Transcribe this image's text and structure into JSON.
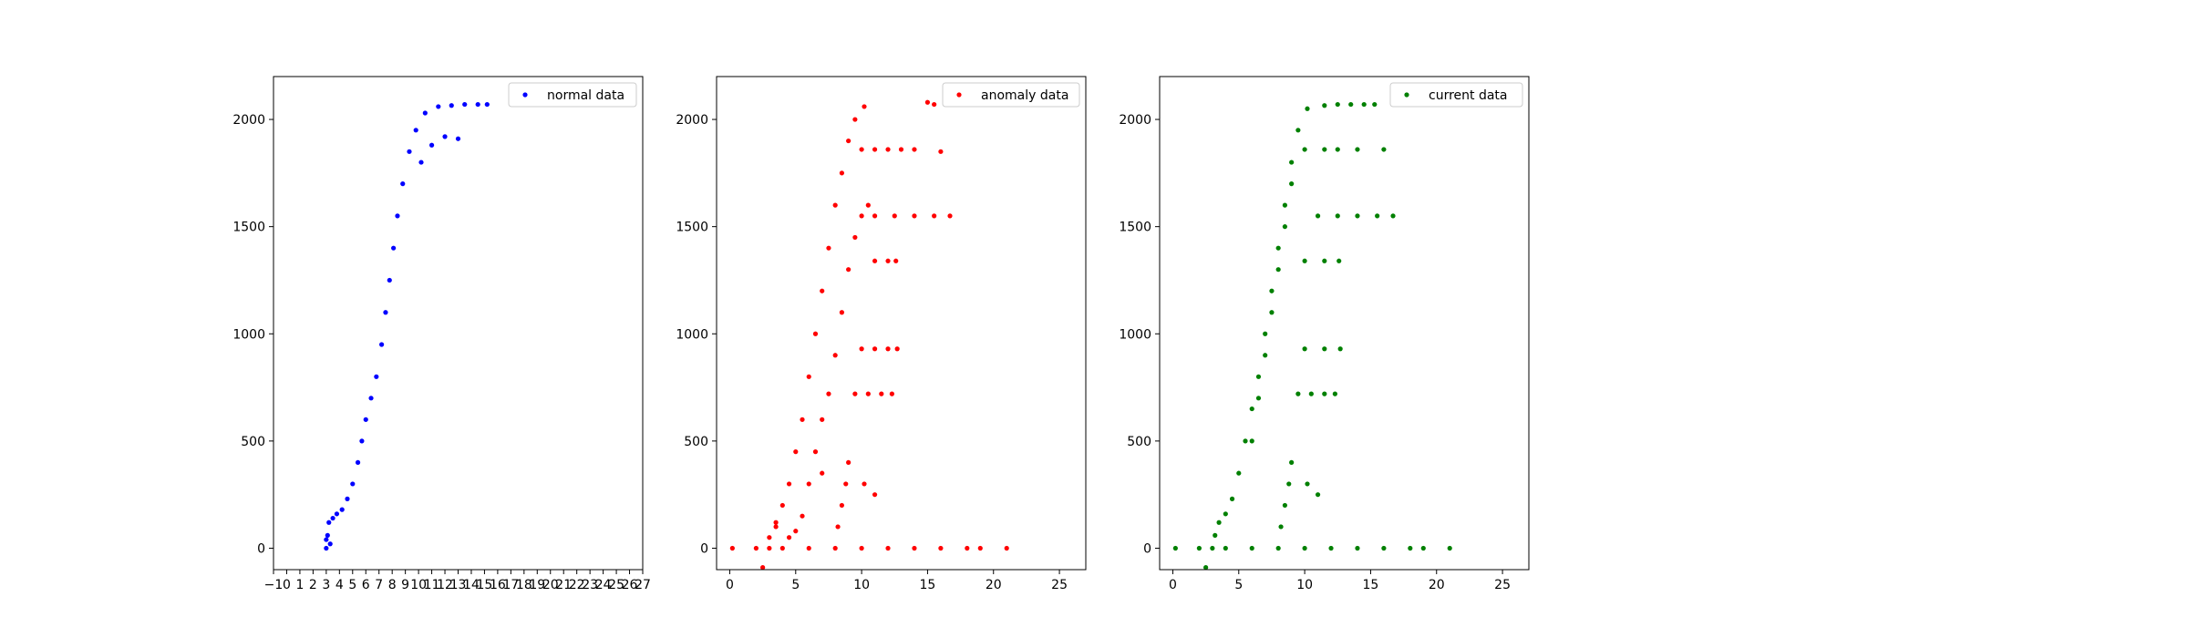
{
  "chart_data": [
    {
      "type": "scatter",
      "color": "#0000ff",
      "series": [
        {
          "name": "normal data"
        }
      ],
      "legend_loc": "upper right",
      "xlim": [
        -1,
        27
      ],
      "ylim": [
        -100,
        2200
      ],
      "xticks": [
        -1,
        0,
        1,
        2,
        3,
        4,
        5,
        6,
        7,
        8,
        9,
        10,
        11,
        12,
        13,
        14,
        15,
        16,
        17,
        18,
        19,
        20,
        21,
        22,
        23,
        24,
        25,
        26,
        27
      ],
      "xtick_labels": [
        "−1",
        "0",
        "1",
        "2",
        "3",
        "4",
        "5",
        "6",
        "7",
        "8",
        "9",
        "10",
        "11",
        "12",
        "13",
        "14",
        "15",
        "16",
        "17",
        "18",
        "19",
        "20",
        "21",
        "22",
        "23",
        "24",
        "25",
        "26",
        "27"
      ],
      "yticks": [
        0,
        500,
        1000,
        1500,
        2000
      ],
      "ytick_labels": [
        "0",
        "500",
        "1000",
        "1500",
        "2000"
      ],
      "points": [
        [
          3.0,
          0
        ],
        [
          3.1,
          60
        ],
        [
          3.2,
          120
        ],
        [
          3.5,
          140
        ],
        [
          3.8,
          160
        ],
        [
          4.2,
          180
        ],
        [
          4.6,
          230
        ],
        [
          5.0,
          300
        ],
        [
          5.4,
          400
        ],
        [
          5.7,
          500
        ],
        [
          6.0,
          600
        ],
        [
          6.4,
          700
        ],
        [
          6.8,
          800
        ],
        [
          7.2,
          950
        ],
        [
          7.5,
          1100
        ],
        [
          7.8,
          1250
        ],
        [
          8.1,
          1400
        ],
        [
          8.4,
          1550
        ],
        [
          8.8,
          1700
        ],
        [
          9.3,
          1850
        ],
        [
          9.8,
          1950
        ],
        [
          10.5,
          2030
        ],
        [
          11.5,
          2060
        ],
        [
          12.5,
          2065
        ],
        [
          13.5,
          2070
        ],
        [
          14.5,
          2070
        ],
        [
          15.2,
          2070
        ],
        [
          12.0,
          1920
        ],
        [
          13.0,
          1910
        ],
        [
          10.2,
          1800
        ],
        [
          11.0,
          1880
        ],
        [
          3.0,
          40
        ],
        [
          3.3,
          20
        ]
      ]
    },
    {
      "type": "scatter",
      "color": "#ff0000",
      "series": [
        {
          "name": "anomaly data"
        }
      ],
      "legend_loc": "upper right",
      "xlim": [
        -1,
        27
      ],
      "ylim": [
        -100,
        2200
      ],
      "xticks": [
        0,
        5,
        10,
        15,
        20,
        25
      ],
      "xtick_labels": [
        "0",
        "5",
        "10",
        "15",
        "20",
        "25"
      ],
      "yticks": [
        0,
        500,
        1000,
        1500,
        2000
      ],
      "ytick_labels": [
        "0",
        "500",
        "1000",
        "1500",
        "2000"
      ],
      "points": [
        [
          0.2,
          0
        ],
        [
          2.0,
          0
        ],
        [
          4.0,
          0
        ],
        [
          6.0,
          0
        ],
        [
          8.0,
          0
        ],
        [
          10.0,
          0
        ],
        [
          12.0,
          0
        ],
        [
          14.0,
          0
        ],
        [
          16.0,
          0
        ],
        [
          18.0,
          0
        ],
        [
          19.0,
          0
        ],
        [
          21.0,
          0
        ],
        [
          2.5,
          -90
        ],
        [
          3.0,
          50
        ],
        [
          3.5,
          120
        ],
        [
          4.0,
          200
        ],
        [
          4.5,
          300
        ],
        [
          5.0,
          450
        ],
        [
          5.5,
          600
        ],
        [
          6.0,
          800
        ],
        [
          6.5,
          1000
        ],
        [
          7.0,
          1200
        ],
        [
          7.5,
          1400
        ],
        [
          8.0,
          1600
        ],
        [
          8.5,
          1750
        ],
        [
          9.0,
          1900
        ],
        [
          9.5,
          2000
        ],
        [
          10.2,
          2060
        ],
        [
          5.5,
          150
        ],
        [
          6.0,
          300
        ],
        [
          6.5,
          450
        ],
        [
          7.0,
          600
        ],
        [
          7.5,
          720
        ],
        [
          8.0,
          900
        ],
        [
          8.5,
          1100
        ],
        [
          9.0,
          1300
        ],
        [
          9.5,
          1450
        ],
        [
          10.0,
          1550
        ],
        [
          10.5,
          1600
        ],
        [
          10.0,
          1860
        ],
        [
          11.0,
          1860
        ],
        [
          12.0,
          1860
        ],
        [
          13.0,
          1860
        ],
        [
          14.0,
          1860
        ],
        [
          11.0,
          1550
        ],
        [
          12.5,
          1550
        ],
        [
          14.0,
          1550
        ],
        [
          15.5,
          1550
        ],
        [
          16.7,
          1550
        ],
        [
          11.0,
          1340
        ],
        [
          12.0,
          1340
        ],
        [
          12.6,
          1340
        ],
        [
          10.0,
          930
        ],
        [
          11.0,
          930
        ],
        [
          12.0,
          930
        ],
        [
          12.7,
          930
        ],
        [
          9.5,
          720
        ],
        [
          10.5,
          720
        ],
        [
          11.5,
          720
        ],
        [
          12.3,
          720
        ],
        [
          15.0,
          2080
        ],
        [
          15.5,
          2070
        ],
        [
          16.0,
          1850
        ],
        [
          8.2,
          100
        ],
        [
          8.5,
          200
        ],
        [
          8.8,
          300
        ],
        [
          9.0,
          400
        ],
        [
          10.2,
          300
        ],
        [
          11.0,
          250
        ],
        [
          7.0,
          350
        ],
        [
          3.0,
          0
        ],
        [
          3.5,
          100
        ],
        [
          4.5,
          50
        ],
        [
          5.0,
          80
        ]
      ]
    },
    {
      "type": "scatter",
      "color": "#008000",
      "series": [
        {
          "name": "current data"
        }
      ],
      "legend_loc": "upper right",
      "xlim": [
        -1,
        27
      ],
      "ylim": [
        -100,
        2200
      ],
      "xticks": [
        0,
        5,
        10,
        15,
        20,
        25
      ],
      "xtick_labels": [
        "0",
        "5",
        "10",
        "15",
        "20",
        "25"
      ],
      "yticks": [
        0,
        500,
        1000,
        1500,
        2000
      ],
      "ytick_labels": [
        "0",
        "500",
        "1000",
        "1500",
        "2000"
      ],
      "points": [
        [
          0.2,
          0
        ],
        [
          2.0,
          0
        ],
        [
          4.0,
          0
        ],
        [
          6.0,
          0
        ],
        [
          8.0,
          0
        ],
        [
          10.0,
          0
        ],
        [
          12.0,
          0
        ],
        [
          14.0,
          0
        ],
        [
          16.0,
          0
        ],
        [
          18.0,
          0
        ],
        [
          19.0,
          0
        ],
        [
          21.0,
          0
        ],
        [
          2.5,
          -90
        ],
        [
          3.0,
          0
        ],
        [
          3.2,
          60
        ],
        [
          3.5,
          120
        ],
        [
          4.0,
          160
        ],
        [
          4.5,
          230
        ],
        [
          5.0,
          350
        ],
        [
          5.5,
          500
        ],
        [
          6.0,
          650
        ],
        [
          6.5,
          800
        ],
        [
          7.0,
          1000
        ],
        [
          7.5,
          1200
        ],
        [
          8.0,
          1400
        ],
        [
          8.5,
          1600
        ],
        [
          9.0,
          1800
        ],
        [
          9.5,
          1950
        ],
        [
          10.2,
          2050
        ],
        [
          11.5,
          2065
        ],
        [
          12.5,
          2070
        ],
        [
          13.5,
          2070
        ],
        [
          14.5,
          2070
        ],
        [
          15.3,
          2070
        ],
        [
          11.0,
          1550
        ],
        [
          12.5,
          1550
        ],
        [
          14.0,
          1550
        ],
        [
          15.5,
          1550
        ],
        [
          16.7,
          1550
        ],
        [
          10.0,
          1860
        ],
        [
          11.5,
          1860
        ],
        [
          12.5,
          1860
        ],
        [
          14.0,
          1860
        ],
        [
          16.0,
          1860
        ],
        [
          10.0,
          1340
        ],
        [
          11.5,
          1340
        ],
        [
          12.6,
          1340
        ],
        [
          10.0,
          930
        ],
        [
          11.5,
          930
        ],
        [
          12.7,
          930
        ],
        [
          9.5,
          720
        ],
        [
          10.5,
          720
        ],
        [
          11.5,
          720
        ],
        [
          12.3,
          720
        ],
        [
          8.2,
          100
        ],
        [
          8.5,
          200
        ],
        [
          8.8,
          300
        ],
        [
          9.0,
          400
        ],
        [
          10.2,
          300
        ],
        [
          11.0,
          250
        ],
        [
          6.0,
          500
        ],
        [
          6.5,
          700
        ],
        [
          7.0,
          900
        ],
        [
          7.5,
          1100
        ],
        [
          8.0,
          1300
        ],
        [
          8.5,
          1500
        ],
        [
          9.0,
          1700
        ]
      ]
    }
  ]
}
